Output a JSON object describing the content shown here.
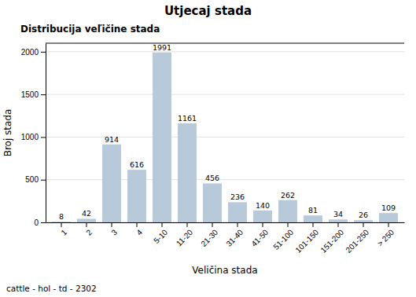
{
  "chart_data": {
    "type": "bar",
    "title": "Utjecaj stada",
    "subtitle": "Distribucija veľičine stada",
    "xlabel": "Veličina stada",
    "ylabel": "Broj stada",
    "footnote": "cattle - hol - td - 2302",
    "categories": [
      "1",
      "2",
      "3",
      "4",
      "5-10",
      "11-20",
      "21-30",
      "31-40",
      "41-50",
      "51-100",
      "101-150",
      "151-200",
      "201-250",
      "> 250"
    ],
    "values": [
      8,
      42,
      914,
      616,
      1991,
      1161,
      456,
      236,
      140,
      262,
      81,
      34,
      26,
      109
    ],
    "color": "#b8c9d9",
    "ylim": [
      0,
      2100
    ],
    "yticks": [
      0,
      500,
      1000,
      1500,
      2000
    ],
    "grid": true,
    "data_labels": true
  }
}
